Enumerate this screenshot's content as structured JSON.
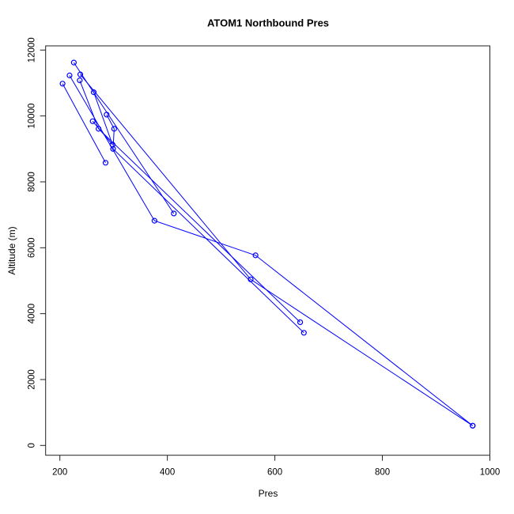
{
  "figure": {
    "background": "#ffffff"
  },
  "chart_data": {
    "type": "line",
    "title": "ATOM1 Northbound Pres",
    "xlabel": "Pres",
    "ylabel": "Altitude (m)",
    "x_ticks": [
      200,
      400,
      600,
      800,
      1000
    ],
    "y_ticks": [
      0,
      2000,
      4000,
      6000,
      8000,
      10000,
      12000
    ],
    "xlim": [
      173,
      1001
    ],
    "ylim": [
      -300,
      12130
    ],
    "grid": false,
    "legend": "none",
    "marker": "open-circle",
    "colors": {
      "series": "#0000ff",
      "axis": "#222222",
      "text": "#000000"
    },
    "series": [
      {
        "points": [
          [
            226,
            11620
          ],
          [
            412,
            7040
          ]
        ]
      },
      {
        "points": [
          [
            205,
            10980
          ],
          [
            285,
            8580
          ]
        ]
      },
      {
        "points": [
          [
            218,
            11230
          ],
          [
            376,
            6820
          ],
          [
            564,
            5770
          ],
          [
            968,
            600
          ]
        ]
      },
      {
        "points": [
          [
            238,
            11260
          ],
          [
            555,
            5040
          ],
          [
            968,
            600
          ]
        ]
      },
      {
        "points": [
          [
            237,
            11080
          ],
          [
            272,
            9610
          ],
          [
            647,
            3740
          ]
        ]
      },
      {
        "points": [
          [
            287,
            10040
          ],
          [
            301,
            9610
          ],
          [
            299,
            9000
          ],
          [
            654,
            3420
          ]
        ]
      },
      {
        "points": [
          [
            263,
            10720
          ],
          [
            298,
            9130
          ]
        ]
      },
      {
        "points": [
          [
            261,
            9840
          ],
          [
            298,
            9130
          ]
        ]
      }
    ]
  }
}
